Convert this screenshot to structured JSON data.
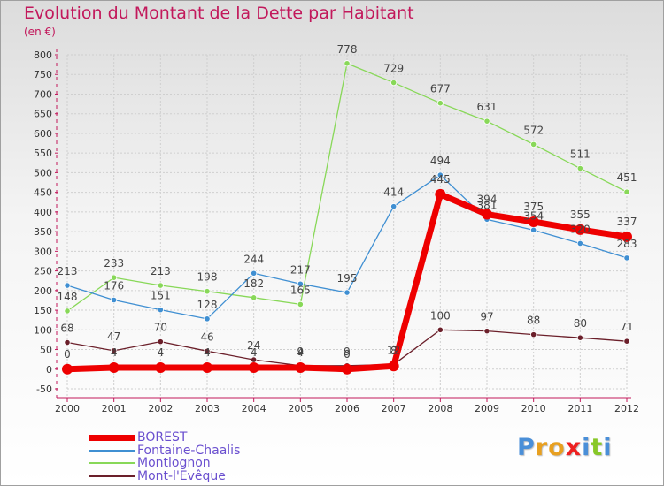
{
  "chart_data": {
    "type": "line",
    "title": "Evolution du Montant de la Dette par Habitant",
    "subtitle": "(en €)",
    "xlabel": "",
    "ylabel": "",
    "ylim": [
      -50,
      800
    ],
    "x": [
      "2000",
      "2001",
      "2002",
      "2003",
      "2004",
      "2005",
      "2006",
      "2007",
      "2008",
      "2009",
      "2010",
      "2011",
      "2012"
    ],
    "yticks": [
      "-50",
      "0",
      "50",
      "100",
      "150",
      "200",
      "250",
      "300",
      "350",
      "400",
      "450",
      "500",
      "550",
      "600",
      "650",
      "700",
      "750",
      "800"
    ],
    "grid": true,
    "legend_position": "bottom-left",
    "series": [
      {
        "name": "BOREST",
        "color": "#ee0000",
        "values": [
          0,
          4,
          4,
          4,
          4,
          4,
          0,
          8,
          445,
          394,
          375,
          355,
          337
        ],
        "labels": [
          "0",
          "4",
          "4",
          "4",
          "4",
          "4",
          "0",
          "8",
          "445",
          "394",
          "375",
          "355",
          "337"
        ]
      },
      {
        "name": "Fontaine-Chaalis",
        "color": "#3f8fd2",
        "values": [
          213,
          176,
          151,
          128,
          244,
          217,
          195,
          414,
          494,
          381,
          354,
          320,
          283
        ],
        "labels": [
          "213",
          "176",
          "151",
          "128",
          "244",
          "217",
          "195",
          "414",
          "494",
          "381",
          "354",
          "320",
          "283"
        ]
      },
      {
        "name": "Montlognon",
        "color": "#88d858",
        "values": [
          148,
          233,
          213,
          198,
          182,
          165,
          778,
          729,
          677,
          631,
          572,
          511,
          451
        ],
        "labels": [
          "148",
          "233",
          "213",
          "198",
          "182",
          "165",
          "778",
          "729",
          "677",
          "631",
          "572",
          "511",
          "451"
        ]
      },
      {
        "name": "Mont-l'Evêque",
        "color": "#6b1f2a",
        "values": [
          68,
          47,
          70,
          46,
          24,
          9,
          9,
          12,
          100,
          97,
          88,
          80,
          71
        ],
        "labels": [
          "68",
          "47",
          "70",
          "46",
          "24",
          "9",
          "9",
          "12",
          "100",
          "97",
          "88",
          "80",
          "71"
        ]
      }
    ]
  },
  "logo": {
    "text": "Proxiti",
    "colors": [
      "#4a8fd8",
      "#e8a020",
      "#e8a020",
      "#ee2020",
      "#4a8fd8",
      "#88c828",
      "#4a8fd8"
    ]
  }
}
